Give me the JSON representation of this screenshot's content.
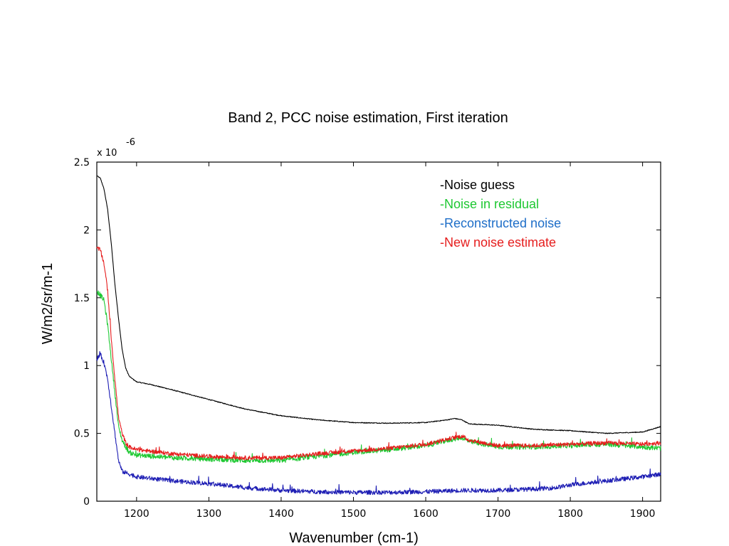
{
  "chart_data": {
    "type": "line",
    "title": "Band 2, PCC noise estimation, First iteration",
    "xlabel": "Wavenumber  (cm-1)",
    "ylabel": "W/m2/sr/m-1",
    "y_multiplier": {
      "base": "x 10",
      "exponent": "-6"
    },
    "xlim": [
      1145,
      1925
    ],
    "ylim": [
      0,
      2.5
    ],
    "x_ticks": [
      1200,
      1300,
      1400,
      1500,
      1600,
      1700,
      1800,
      1900
    ],
    "y_ticks": [
      {
        "value": 0,
        "label": "0"
      },
      {
        "value": 0.5,
        "label": "0.5"
      },
      {
        "value": 1,
        "label": "1"
      },
      {
        "value": 1.5,
        "label": "1.5"
      },
      {
        "value": 2,
        "label": "2"
      },
      {
        "value": 2.5,
        "label": "2.5"
      }
    ],
    "grid": false,
    "legend_position": "top-right",
    "series": [
      {
        "name": "-Noise guess",
        "color": "#000000",
        "noise": 0.003,
        "x": [
          1145,
          1150,
          1155,
          1160,
          1165,
          1170,
          1175,
          1180,
          1185,
          1190,
          1200,
          1210,
          1220,
          1250,
          1300,
          1350,
          1400,
          1450,
          1500,
          1550,
          1600,
          1630,
          1640,
          1650,
          1660,
          1700,
          1750,
          1800,
          1850,
          1900,
          1925
        ],
        "y": [
          2.4,
          2.38,
          2.3,
          2.15,
          1.9,
          1.6,
          1.35,
          1.12,
          0.98,
          0.92,
          0.88,
          0.87,
          0.86,
          0.82,
          0.75,
          0.68,
          0.63,
          0.6,
          0.58,
          0.575,
          0.58,
          0.6,
          0.61,
          0.6,
          0.57,
          0.56,
          0.53,
          0.52,
          0.5,
          0.51,
          0.55
        ]
      },
      {
        "name": "-Noise in residual",
        "color": "#1ec832",
        "noise": 0.018,
        "x": [
          1145,
          1150,
          1155,
          1160,
          1165,
          1170,
          1175,
          1180,
          1185,
          1190,
          1200,
          1250,
          1300,
          1350,
          1400,
          1450,
          1500,
          1550,
          1600,
          1640,
          1650,
          1660,
          1700,
          1750,
          1800,
          1850,
          1900,
          1925
        ],
        "y": [
          1.55,
          1.52,
          1.48,
          1.3,
          1.05,
          0.8,
          0.55,
          0.45,
          0.4,
          0.36,
          0.34,
          0.32,
          0.31,
          0.3,
          0.3,
          0.33,
          0.36,
          0.38,
          0.41,
          0.46,
          0.47,
          0.44,
          0.4,
          0.4,
          0.41,
          0.42,
          0.4,
          0.39
        ]
      },
      {
        "name": "-Reconstructed noise",
        "color": "#1e6ec8",
        "line_color": "#1e1eb4",
        "noise": 0.016,
        "x": [
          1145,
          1150,
          1155,
          1160,
          1165,
          1170,
          1175,
          1180,
          1190,
          1200,
          1250,
          1300,
          1350,
          1400,
          1450,
          1500,
          1550,
          1600,
          1650,
          1700,
          1750,
          1780,
          1800,
          1850,
          1900,
          1925
        ],
        "y": [
          1.05,
          1.08,
          1.02,
          0.9,
          0.7,
          0.5,
          0.3,
          0.22,
          0.2,
          0.18,
          0.15,
          0.13,
          0.1,
          0.08,
          0.07,
          0.065,
          0.065,
          0.07,
          0.08,
          0.08,
          0.09,
          0.1,
          0.12,
          0.15,
          0.18,
          0.2
        ]
      },
      {
        "name": "-New noise estimate",
        "color": "#e61e1e",
        "noise": 0.015,
        "x": [
          1145,
          1150,
          1155,
          1160,
          1165,
          1170,
          1175,
          1180,
          1185,
          1190,
          1200,
          1250,
          1300,
          1350,
          1400,
          1450,
          1500,
          1550,
          1600,
          1640,
          1650,
          1660,
          1700,
          1750,
          1800,
          1850,
          1900,
          1925
        ],
        "y": [
          1.87,
          1.85,
          1.75,
          1.55,
          1.2,
          0.9,
          0.62,
          0.5,
          0.43,
          0.4,
          0.38,
          0.35,
          0.33,
          0.32,
          0.32,
          0.35,
          0.37,
          0.39,
          0.42,
          0.47,
          0.48,
          0.45,
          0.41,
          0.41,
          0.42,
          0.43,
          0.42,
          0.43
        ]
      }
    ]
  }
}
